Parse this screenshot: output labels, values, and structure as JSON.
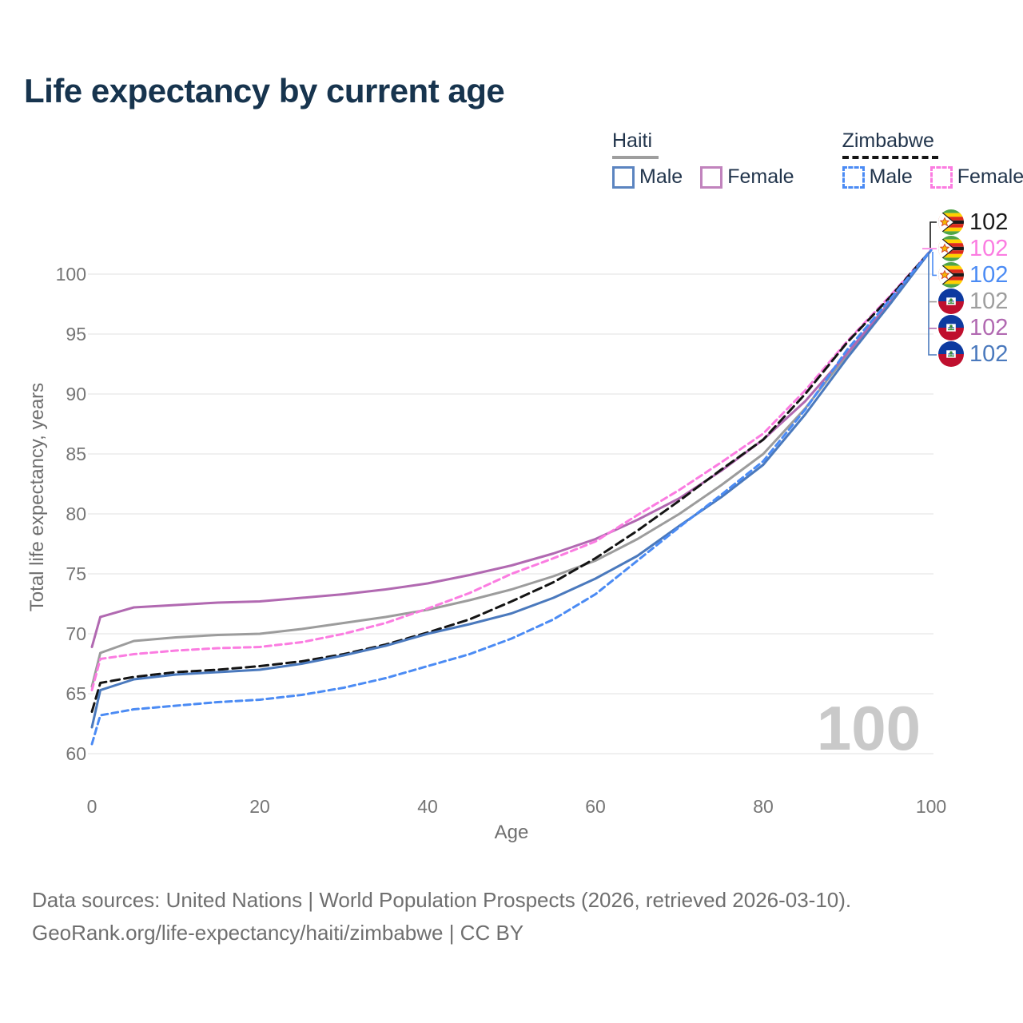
{
  "title": "Life expectancy by current age",
  "legend": {
    "groups": [
      {
        "name": "Haiti",
        "line_style": "solid",
        "line_color": "#9e9e9e",
        "items": [
          {
            "label": "Male",
            "color": "#4a79bd",
            "style": "solid"
          },
          {
            "label": "Female",
            "color": "#c183bd",
            "style": "solid"
          }
        ]
      },
      {
        "name": "Zimbabwe",
        "line_style": "dashed",
        "line_color": "#151515",
        "items": [
          {
            "label": "Male",
            "color": "#4b8bf4",
            "style": "dashed"
          },
          {
            "label": "Female",
            "color": "#fb7ce1",
            "style": "dashed"
          }
        ]
      }
    ]
  },
  "chart_data": {
    "type": "line",
    "title": "Life expectancy by current age",
    "xlabel": "Age",
    "ylabel": "Total life expectancy, years",
    "x_ticks": [
      0,
      20,
      40,
      60,
      80,
      100
    ],
    "y_ticks": [
      60,
      65,
      70,
      75,
      80,
      85,
      90,
      95,
      100
    ],
    "xlim": [
      0,
      100
    ],
    "ylim": [
      60,
      102
    ],
    "grid": "horizontal",
    "legend_position": "top-right",
    "ages": [
      0,
      1,
      5,
      10,
      15,
      20,
      25,
      30,
      35,
      40,
      45,
      50,
      55,
      60,
      65,
      70,
      75,
      80,
      85,
      90,
      95,
      100
    ],
    "series": [
      {
        "id": "haiti-both",
        "country": "Haiti",
        "sex": "Both",
        "style": "solid",
        "color": "#9c9c9c",
        "values": [
          65.6,
          68.4,
          69.4,
          69.7,
          69.9,
          70.0,
          70.4,
          70.9,
          71.4,
          72.0,
          72.8,
          73.7,
          74.8,
          76.1,
          77.9,
          80.0,
          82.4,
          85.0,
          88.8,
          93.3,
          97.5,
          102
        ]
      },
      {
        "id": "haiti-female",
        "country": "Haiti",
        "sex": "Female",
        "style": "solid",
        "color": "#b169b1",
        "values": [
          68.9,
          71.4,
          72.2,
          72.4,
          72.6,
          72.7,
          73.0,
          73.3,
          73.7,
          74.2,
          74.9,
          75.7,
          76.7,
          77.9,
          79.5,
          81.3,
          83.6,
          86.2,
          89.4,
          93.4,
          97.6,
          102
        ]
      },
      {
        "id": "zimbabwe-female",
        "country": "Zimbabwe",
        "sex": "Female",
        "style": "dashed",
        "color": "#fb7ce1",
        "values": [
          65.3,
          67.9,
          68.3,
          68.6,
          68.8,
          68.9,
          69.3,
          70.0,
          70.9,
          72.1,
          73.4,
          75.0,
          76.3,
          77.7,
          79.9,
          82.0,
          84.3,
          86.7,
          90.3,
          94.4,
          98.1,
          102
        ]
      },
      {
        "id": "zimbabwe-both",
        "country": "Zimbabwe",
        "sex": "Both",
        "style": "dashed",
        "color": "#141414",
        "values": [
          63.5,
          65.9,
          66.4,
          66.8,
          67.0,
          67.3,
          67.7,
          68.3,
          69.1,
          70.1,
          71.2,
          72.7,
          74.3,
          76.3,
          78.6,
          81.1,
          83.7,
          86.2,
          90.0,
          94.3,
          98.0,
          102
        ]
      },
      {
        "id": "haiti-male",
        "country": "Haiti",
        "sex": "Male",
        "style": "solid",
        "color": "#4a79bd",
        "values": [
          62.2,
          65.3,
          66.2,
          66.6,
          66.8,
          67.0,
          67.5,
          68.2,
          69.0,
          70.0,
          70.8,
          71.7,
          73.0,
          74.6,
          76.5,
          79.0,
          81.4,
          84.1,
          88.3,
          93.0,
          97.4,
          102
        ]
      },
      {
        "id": "zimbabwe-male",
        "country": "Zimbabwe",
        "sex": "Male",
        "style": "dashed",
        "color": "#4b8bf4",
        "values": [
          60.8,
          63.2,
          63.7,
          64.0,
          64.3,
          64.5,
          64.9,
          65.5,
          66.3,
          67.3,
          68.3,
          69.6,
          71.2,
          73.3,
          76.1,
          78.9,
          81.6,
          84.4,
          88.7,
          93.7,
          97.8,
          102
        ]
      }
    ]
  },
  "end_labels": [
    {
      "flag": "zimbabwe",
      "value": "102",
      "color": "#1a1a1a"
    },
    {
      "flag": "zimbabwe",
      "value": "102",
      "color": "#fb7ce1"
    },
    {
      "flag": "zimbabwe",
      "value": "102",
      "color": "#4b8bf4"
    },
    {
      "flag": "haiti",
      "value": "102",
      "color": "#9e9e9e"
    },
    {
      "flag": "haiti",
      "value": "102",
      "color": "#b169b1"
    },
    {
      "flag": "haiti",
      "value": "102",
      "color": "#4a79bd"
    }
  ],
  "watermark": "100",
  "footer": {
    "line1": "Data sources: United Nations | World Population Prospects (2026, retrieved 2026-03-10).",
    "line2": "GeoRank.org/life-expectancy/haiti/zimbabwe | CC BY"
  },
  "colors": {
    "title": "#17344e",
    "grid": "#e7e7e7",
    "tick_text": "#757575",
    "watermark": "#c9c9c9"
  }
}
